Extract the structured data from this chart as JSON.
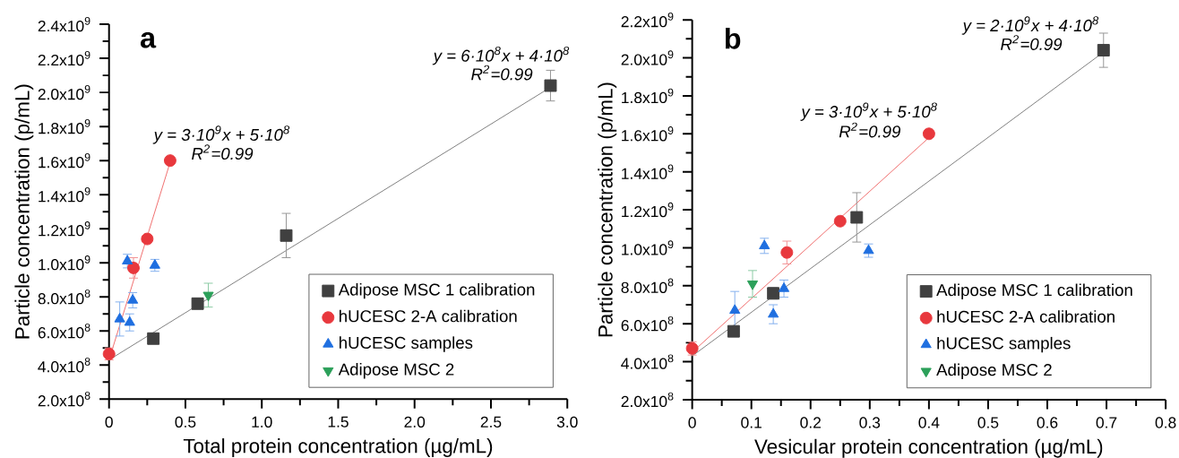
{
  "chart_data": [
    {
      "type": "scatter",
      "title": "a",
      "xlabel": "Total protein concentration (µg/mL)",
      "ylabel": "Particle concentration (p/mL)",
      "xlim": [
        0,
        3
      ],
      "xticks": [
        0,
        0.5,
        {
          "value": 1,
          "label": "1.0"
        },
        1.5,
        {
          "value": 2,
          "label": "2.0"
        },
        2.5,
        {
          "value": 3,
          "label": "3.0"
        }
      ],
      "ylim": [
        200000000,
        2400000000
      ],
      "yticks": [
        {
          "value": 200000000,
          "label": "2.0x10$^{8}$"
        },
        {
          "value": 400000000,
          "label": "4.0x10$^{8}$"
        },
        {
          "value": 600000000,
          "label": "6.0x10$^{8}$"
        },
        {
          "value": 800000000,
          "label": "8.0x10$^{8}$"
        },
        {
          "value": 1000000000,
          "label": "1.0x10$^{9}$"
        },
        {
          "value": 1200000000,
          "label": "1.2x10$^{9}$"
        },
        {
          "value": 1400000000,
          "label": "1.4x10$^{9}$"
        },
        {
          "value": 1600000000,
          "label": "1.6x10$^{9}$"
        },
        {
          "value": 1800000000,
          "label": "1.8x10$^{9}$"
        },
        {
          "value": 2000000000,
          "label": "2.0x10$^{9}$"
        },
        {
          "value": 2200000000,
          "label": "2.2x10$^{9}$"
        },
        {
          "value": 2400000000,
          "label": "2.4x10$^{9}$"
        }
      ],
      "legend": "bottom right",
      "series": [
        {
          "type": "line",
          "color": "#808080",
          "x": [
            0,
            2.89
          ],
          "values": [
            430000000,
            2030000000
          ]
        },
        {
          "type": "line",
          "color": "#f07070",
          "x": [
            0,
            0.4
          ],
          "values": [
            430000000,
            1590000000
          ]
        },
        {
          "name": "Adipose MSC 1 calibration",
          "color": "#404040",
          "marker": "square",
          "x": [
            0.29,
            0.58,
            1.16,
            2.89
          ],
          "values": [
            555000000,
            760000000,
            1160000000,
            2040000000
          ],
          "errors": [
            20000000,
            30000000,
            130000000,
            90000000
          ]
        },
        {
          "name": "hUCESC 2-A calibration",
          "color": "#e8383d",
          "marker": "circle",
          "x": [
            0,
            0.16,
            0.25,
            0.4
          ],
          "values": [
            465000000,
            970000000,
            1140000000,
            1600000000
          ],
          "errors": [
            35000000,
            60000000,
            null,
            20000000
          ]
        },
        {
          "name": "hUCESC samples",
          "color": "#1f6fe0",
          "marker": "triangle",
          "x": [
            0.07,
            0.12,
            0.135,
            0.155,
            0.3
          ],
          "values": [
            670000000,
            1010000000,
            650000000,
            780000000,
            985000000
          ],
          "errors": [
            100000000,
            40000000,
            50000000,
            45000000,
            35000000
          ]
        },
        {
          "name": "Adipose MSC 2",
          "color": "#2ca05a",
          "marker": "triangle-down",
          "x": [
            0.65
          ],
          "values": [
            810000000
          ],
          "errors": [
            70000000
          ]
        }
      ],
      "annotations": [
        "y = 6·10$^{8}$x + 4·10$^{8}$",
        "R$^{2}$=0.99",
        "y = 3·10$^{9}$x + 5·10$^{8}$",
        "R$^{2}$=0.99"
      ]
    },
    {
      "type": "scatter",
      "title": "b",
      "xlabel": "Vesicular protein concentration (µg/mL)",
      "ylabel": "Particle concentration (p/mL)",
      "xlim": [
        0,
        0.8
      ],
      "xticks": [
        0,
        0.1,
        0.2,
        0.3,
        0.4,
        0.5,
        0.6,
        0.7,
        0.8
      ],
      "ylim": [
        200000000,
        2200000000
      ],
      "yticks": [
        {
          "value": 200000000,
          "label": "2.0x10$^{8}$"
        },
        {
          "value": 400000000,
          "label": "4.0x10$^{8}$"
        },
        {
          "value": 600000000,
          "label": "6.0x10$^{8}$"
        },
        {
          "value": 800000000,
          "label": "8.0x10$^{8}$"
        },
        {
          "value": 1000000000,
          "label": "1.0x10$^{9}$"
        },
        {
          "value": 1200000000,
          "label": "1.2x10$^{9}$"
        },
        {
          "value": 1400000000,
          "label": "1.4x10$^{9}$"
        },
        {
          "value": 1600000000,
          "label": "1.6x10$^{9}$"
        },
        {
          "value": 1800000000,
          "label": "1.8x10$^{9}$"
        },
        {
          "value": 2000000000,
          "label": "2.0x10$^{9}$"
        },
        {
          "value": 2200000000,
          "label": "2.2x10$^{9}$"
        }
      ],
      "legend": "bottom right",
      "series": [
        {
          "type": "line",
          "color": "#808080",
          "x": [
            0,
            0.695
          ],
          "values": [
            430000000,
            2030000000
          ]
        },
        {
          "type": "line",
          "color": "#f07070",
          "x": [
            0,
            0.4
          ],
          "values": [
            450000000,
            1580000000
          ]
        },
        {
          "name": "Adipose MSC 1 calibration",
          "color": "#404040",
          "marker": "square",
          "x": [
            0.07,
            0.137,
            0.278,
            0.695
          ],
          "values": [
            560000000,
            760000000,
            1160000000,
            2040000000
          ],
          "errors": [
            20000000,
            30000000,
            130000000,
            90000000
          ]
        },
        {
          "name": "hUCESC 2-A calibration",
          "color": "#e8383d",
          "marker": "circle",
          "x": [
            0,
            0.16,
            0.25,
            0.4
          ],
          "values": [
            470000000,
            975000000,
            1140000000,
            1600000000
          ],
          "errors": [
            35000000,
            60000000,
            null,
            20000000
          ]
        },
        {
          "name": "hUCESC samples",
          "color": "#1f6fe0",
          "marker": "triangle",
          "x": [
            0.072,
            0.122,
            0.137,
            0.155,
            0.298
          ],
          "values": [
            670000000,
            1010000000,
            650000000,
            785000000,
            985000000
          ],
          "errors": [
            100000000,
            40000000,
            50000000,
            45000000,
            35000000
          ]
        },
        {
          "name": "Adipose MSC 2",
          "color": "#2ca05a",
          "marker": "triangle-down",
          "x": [
            0.102
          ],
          "values": [
            810000000
          ],
          "errors": [
            70000000
          ]
        }
      ],
      "annotations": [
        "y = 2·10$^{9}$x + 4·10$^{8}$",
        "R$^{2}$=0.99",
        "y = 3·10$^{9}$x + 5·10$^{8}$",
        "R$^{2}$=0.99"
      ]
    }
  ]
}
